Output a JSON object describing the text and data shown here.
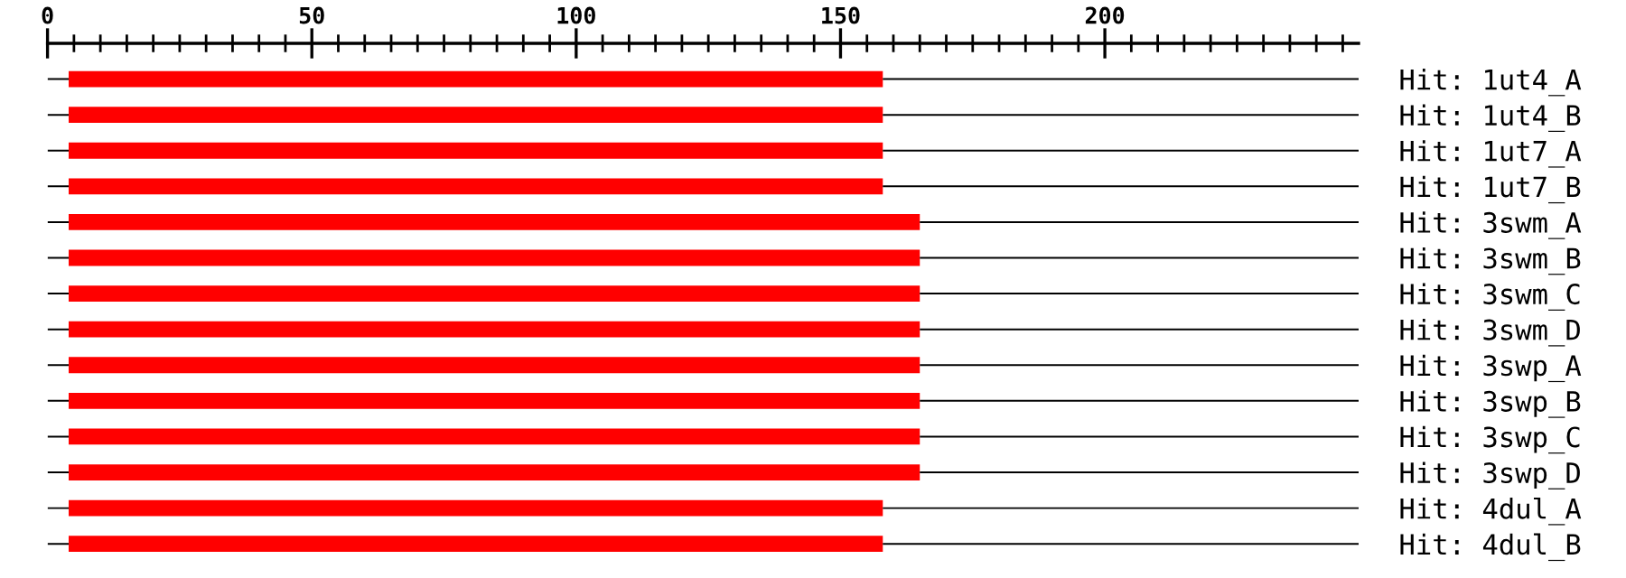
{
  "chart_data": {
    "type": "bar",
    "orientation": "horizontal",
    "categories": [
      "Hit: 1ut4_A",
      "Hit: 1ut4_B",
      "Hit: 1ut7_A",
      "Hit: 1ut7_B",
      "Hit: 3swm_A",
      "Hit: 3swm_B",
      "Hit: 3swm_C",
      "Hit: 3swm_D",
      "Hit: 3swp_A",
      "Hit: 3swp_B",
      "Hit: 3swp_C",
      "Hit: 3swp_D",
      "Hit: 4dul_A",
      "Hit: 4dul_B"
    ],
    "series": [
      {
        "color": "#000000",
        "values": [
          4,
          4,
          4,
          4,
          4,
          4,
          4,
          4,
          4,
          4,
          4,
          4,
          4,
          4
        ]
      },
      {
        "color": "#ff0000",
        "values": [
          154,
          154,
          154,
          154,
          161,
          161,
          161,
          161,
          161,
          161,
          161,
          161,
          154,
          154
        ]
      },
      {
        "color": "#000000",
        "values": [
          90,
          90,
          90,
          90,
          83,
          83,
          83,
          83,
          83,
          83,
          83,
          83,
          90,
          90
        ]
      }
    ],
    "stacked": true,
    "xlim": [
      0,
      248
    ],
    "xticks": [
      0,
      {
        "value": 5,
        "label": null
      },
      {
        "value": 10,
        "label": null
      },
      {
        "value": 15,
        "label": null
      },
      {
        "value": 20,
        "label": null
      },
      {
        "value": 25,
        "label": null
      },
      {
        "value": 30,
        "label": null
      },
      {
        "value": 35,
        "label": null
      },
      {
        "value": 40,
        "label": null
      },
      {
        "value": 45,
        "label": null
      },
      50,
      {
        "value": 55,
        "label": null
      },
      {
        "value": 60,
        "label": null
      },
      {
        "value": 65,
        "label": null
      },
      {
        "value": 70,
        "label": null
      },
      {
        "value": 75,
        "label": null
      },
      {
        "value": 80,
        "label": null
      },
      {
        "value": 85,
        "label": null
      },
      {
        "value": 90,
        "label": null
      },
      {
        "value": 95,
        "label": null
      },
      100,
      {
        "value": 105,
        "label": null
      },
      {
        "value": 110,
        "label": null
      },
      {
        "value": 115,
        "label": null
      },
      {
        "value": 120,
        "label": null
      },
      {
        "value": 125,
        "label": null
      },
      {
        "value": 130,
        "label": null
      },
      {
        "value": 135,
        "label": null
      },
      {
        "value": 140,
        "label": null
      },
      {
        "value": 145,
        "label": null
      },
      150,
      {
        "value": 155,
        "label": null
      },
      {
        "value": 160,
        "label": null
      },
      {
        "value": 165,
        "label": null
      },
      {
        "value": 170,
        "label": null
      },
      {
        "value": 175,
        "label": null
      },
      {
        "value": 180,
        "label": null
      },
      {
        "value": 185,
        "label": null
      },
      {
        "value": 190,
        "label": null
      },
      {
        "value": 195,
        "label": null
      },
      200,
      {
        "value": 205,
        "label": null
      },
      {
        "value": 210,
        "label": null
      },
      {
        "value": 215,
        "label": null
      },
      {
        "value": 220,
        "label": null
      },
      {
        "value": 225,
        "label": null
      },
      {
        "value": 230,
        "label": null
      },
      {
        "value": 235,
        "label": null
      },
      {
        "value": 240,
        "label": null
      },
      {
        "value": 245,
        "label": null
      }
    ],
    "grid": false,
    "legend": false
  }
}
